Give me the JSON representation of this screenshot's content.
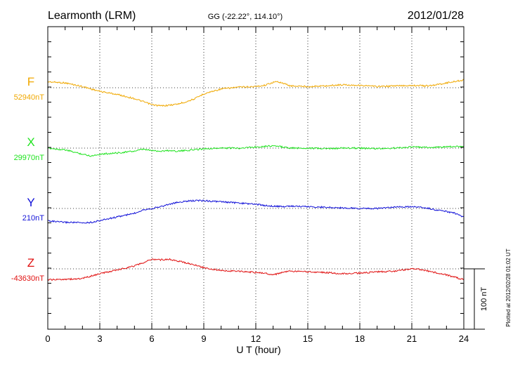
{
  "header": {
    "station": "Learmonth (LRM)",
    "coords": "GG (-22.22°, 114.10°)",
    "date": "2012/01/28"
  },
  "footer": {
    "plotted": "Plotted at 2012/02/28 01:02 UT",
    "scale_label": "100 nT"
  },
  "chart_data": {
    "type": "line",
    "xlabel": "U T (hour)",
    "xlim": [
      0,
      24
    ],
    "xticks": [
      "0",
      "3",
      "6",
      "9",
      "12",
      "15",
      "18",
      "21",
      "24"
    ],
    "scale_bar_nT": 100,
    "grid": true,
    "series": [
      {
        "name": "F",
        "baseline_label": "52940nT",
        "color": "#f0a800",
        "x": [
          0,
          1,
          2,
          3,
          4,
          5,
          5.5,
          6,
          6.5,
          7,
          7.5,
          8,
          8.5,
          9,
          10,
          11,
          12,
          12.5,
          13,
          13.3,
          14,
          15,
          16,
          17,
          18,
          19,
          20,
          21,
          22,
          23,
          24
        ],
        "y": [
          52950,
          52948,
          52942,
          52934,
          52929,
          52922,
          52917,
          52912,
          52910,
          52911,
          52913,
          52917,
          52922,
          52930,
          52938,
          52941,
          52942,
          52944,
          52949,
          52950,
          52943,
          52942,
          52943,
          52945,
          52944,
          52942,
          52943,
          52944,
          52943,
          52948,
          52953
        ]
      },
      {
        "name": "X",
        "baseline_label": "29970nT",
        "color": "#1ee31e",
        "x": [
          0,
          1,
          2,
          2.5,
          3,
          4,
          5,
          5.5,
          6,
          6.5,
          7,
          7.5,
          8,
          9,
          10,
          11,
          12,
          13,
          14,
          15,
          16,
          17,
          18,
          19,
          20,
          21,
          22,
          23,
          24
        ],
        "y": [
          29970,
          29967,
          29960,
          29957,
          29960,
          29962,
          29965,
          29968,
          29966,
          29965,
          29966,
          29965,
          29966,
          29969,
          29970,
          29970,
          29972,
          29974,
          29970,
          29970,
          29969,
          29970,
          29970,
          29969,
          29970,
          29972,
          29971,
          29972,
          29973
        ]
      },
      {
        "name": "Y",
        "baseline_label": "210nT",
        "color": "#1010d8",
        "x": [
          0,
          0.5,
          1,
          1.5,
          2,
          2.5,
          3,
          4,
          5,
          5.5,
          6,
          6.5,
          7,
          7.5,
          8,
          8.5,
          9,
          10,
          11,
          12,
          12.5,
          13,
          13.5,
          14,
          15,
          16,
          17,
          18,
          19,
          20,
          21,
          21.5,
          22,
          22.5,
          23,
          23.5,
          24
        ],
        "y": [
          190,
          188,
          187,
          187,
          186,
          187,
          190,
          196,
          202,
          208,
          210,
          213,
          217,
          220,
          222,
          223,
          223,
          221,
          219,
          217,
          215,
          214,
          213,
          214,
          213,
          212,
          211,
          210,
          210,
          212,
          213,
          212,
          210,
          207,
          205,
          202,
          196
        ]
      },
      {
        "name": "Z",
        "baseline_label": "-43630nT",
        "color": "#e01010",
        "x": [
          0,
          0.5,
          1,
          1.5,
          2,
          3,
          4,
          5,
          5.5,
          6,
          6.5,
          7,
          7.5,
          8,
          9,
          10,
          11,
          12,
          12.5,
          13,
          13.5,
          14,
          15,
          16,
          17,
          18,
          19,
          20,
          21,
          21.5,
          22,
          23,
          24
        ],
        "y": [
          -43648,
          -43648,
          -43647,
          -43647,
          -43646,
          -43638,
          -43632,
          -43625,
          -43620,
          -43614,
          -43615,
          -43614,
          -43617,
          -43620,
          -43628,
          -43633,
          -43634,
          -43636,
          -43637,
          -43640,
          -43636,
          -43634,
          -43635,
          -43636,
          -43638,
          -43637,
          -43635,
          -43634,
          -43630,
          -43631,
          -43634,
          -43640,
          -43648
        ]
      }
    ]
  }
}
